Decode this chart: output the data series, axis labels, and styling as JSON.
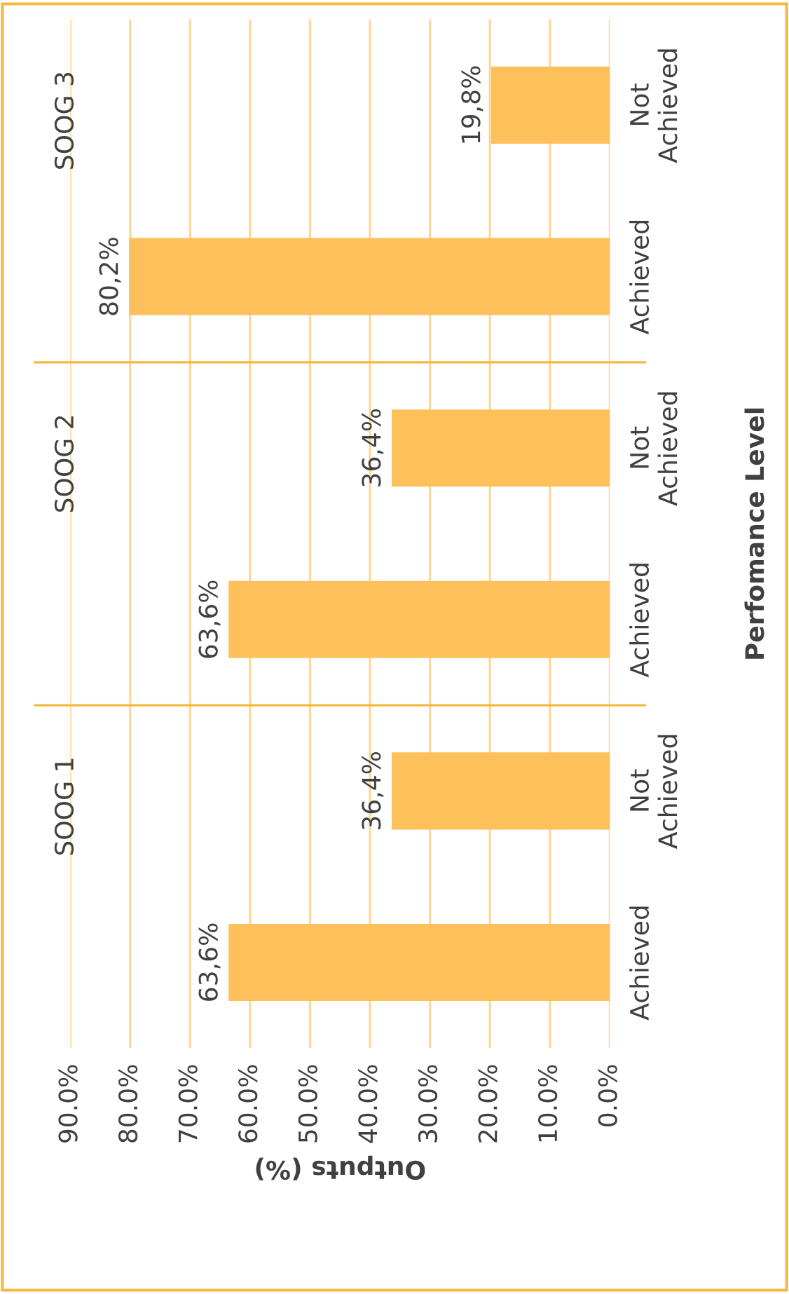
{
  "chart_data": {
    "type": "bar",
    "orientation": "horizontal",
    "categories": [
      "Not Achieved",
      "Achieved",
      "Not Achieved",
      "Achieved",
      "Not Achieved",
      "Achieved"
    ],
    "values": [
      19.8,
      80.2,
      36.4,
      63.6,
      36.4,
      63.6
    ],
    "value_labels": [
      "19,8%",
      "80,2%",
      "36,4%",
      "63,6%",
      "36,4%",
      "63,6%"
    ],
    "color": "#fdc05a",
    "xlim": [
      90,
      0
    ],
    "xticks": [
      {
        "value": 90,
        "label": "90.0%"
      },
      {
        "value": 80,
        "label": "80.0%"
      },
      {
        "value": 70,
        "label": "70.0%"
      },
      {
        "value": 60,
        "label": "60.0%"
      },
      {
        "value": 50,
        "label": "50.0%"
      },
      {
        "value": 40,
        "label": "40.0%"
      },
      {
        "value": 30,
        "label": "30.0%"
      },
      {
        "value": 20,
        "label": "20.0%"
      },
      {
        "value": 10,
        "label": "10.0%"
      },
      {
        "value": 0,
        "label": "0.0%"
      }
    ],
    "xlabel": "Outputs (%)",
    "ylabel": "Perfomance Level",
    "annotations": [
      "SOOG 3",
      "SOOG 2",
      "SOOG 1"
    ],
    "grid": "x"
  }
}
